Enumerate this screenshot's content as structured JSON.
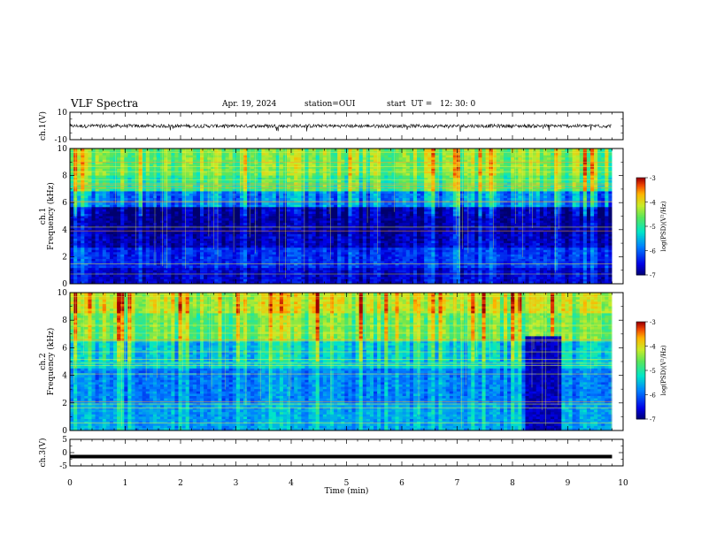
{
  "header": {
    "title": "VLF Spectra",
    "date": "Apr. 19, 2024",
    "station": "station=OUI",
    "start": "start  UT =   12: 30: 0"
  },
  "chart_data": [
    {
      "type": "line",
      "panel": "ch1-waveform",
      "ylabel": "ch.1(V)",
      "ylim": [
        -10,
        10
      ],
      "yticks": [
        "10",
        "-10"
      ],
      "xlim": [
        0,
        10
      ],
      "series": [
        {
          "values_note_level": 0,
          "x_end": 9.8
        }
      ]
    },
    {
      "type": "heatmap",
      "panel": "ch1-spectrogram",
      "ylabel": "ch.1\nFrequency (kHz)",
      "ylabel_lines": [
        "ch.1",
        "Frequency (kHz)"
      ],
      "ylim": [
        0,
        10
      ],
      "yticks": [
        "0",
        "2",
        "4",
        "6",
        "8",
        "10"
      ],
      "xlim": [
        0,
        10
      ],
      "x_end": 9.8,
      "colorbar": {
        "label": "log(PSD)(V²/Hz)",
        "ticks": [
          "-3",
          "-4",
          "-5",
          "-6",
          "-7"
        ],
        "range": [
          -7,
          -3
        ]
      },
      "bands": [
        {
          "f_from": 0,
          "f_to": 1.2,
          "level": 0.1
        },
        {
          "f_from": 1.2,
          "f_to": 2.7,
          "level": 0.18
        },
        {
          "f_from": 2.7,
          "f_to": 3.6,
          "level": 0.08
        },
        {
          "f_from": 3.6,
          "f_to": 5.6,
          "level": 0.05
        },
        {
          "f_from": 5.6,
          "f_to": 6.8,
          "level": 0.3
        },
        {
          "f_from": 6.8,
          "f_to": 8.0,
          "level": 0.55
        },
        {
          "f_from": 8.0,
          "f_to": 10.0,
          "level": 0.62
        }
      ]
    },
    {
      "type": "heatmap",
      "panel": "ch2-spectrogram",
      "ylabel": "ch.2\nFrequency (kHz)",
      "ylabel_lines": [
        "ch.2",
        "Frequency (kHz)"
      ],
      "ylim": [
        0,
        10
      ],
      "yticks": [
        "0",
        "2",
        "4",
        "6",
        "8",
        "10"
      ],
      "xlim": [
        0,
        10
      ],
      "x_end": 9.8,
      "colorbar": {
        "label": "log(PSD)(V²/Hz)",
        "ticks": [
          "-3",
          "-4",
          "-5",
          "-6",
          "-7"
        ],
        "range": [
          -7,
          -3
        ]
      },
      "bands": [
        {
          "f_from": 0,
          "f_to": 2.0,
          "level": 0.35
        },
        {
          "f_from": 2.0,
          "f_to": 4.5,
          "level": 0.3
        },
        {
          "f_from": 4.5,
          "f_to": 6.5,
          "level": 0.42
        },
        {
          "f_from": 6.5,
          "f_to": 8.5,
          "level": 0.62
        },
        {
          "f_from": 8.5,
          "f_to": 10.0,
          "level": 0.72
        }
      ],
      "gap": {
        "t_from": 8.2,
        "t_to": 8.9,
        "f_to": 6.8,
        "level": 0.08
      }
    },
    {
      "type": "line",
      "panel": "ch3-waveform",
      "ylabel": "ch.3(V)",
      "ylim": [
        -5,
        5
      ],
      "yticks": [
        "5",
        "0",
        "-5"
      ],
      "xlim": [
        0,
        10
      ],
      "series": [
        {
          "level": -1.5,
          "x_end": 9.8
        }
      ]
    }
  ],
  "xaxis": {
    "label": "Time (min)",
    "ticks": [
      "0",
      "1",
      "2",
      "3",
      "4",
      "5",
      "6",
      "7",
      "8",
      "9",
      "10"
    ]
  },
  "colors": {
    "axis": "#000000",
    "background": "#ffffff"
  }
}
